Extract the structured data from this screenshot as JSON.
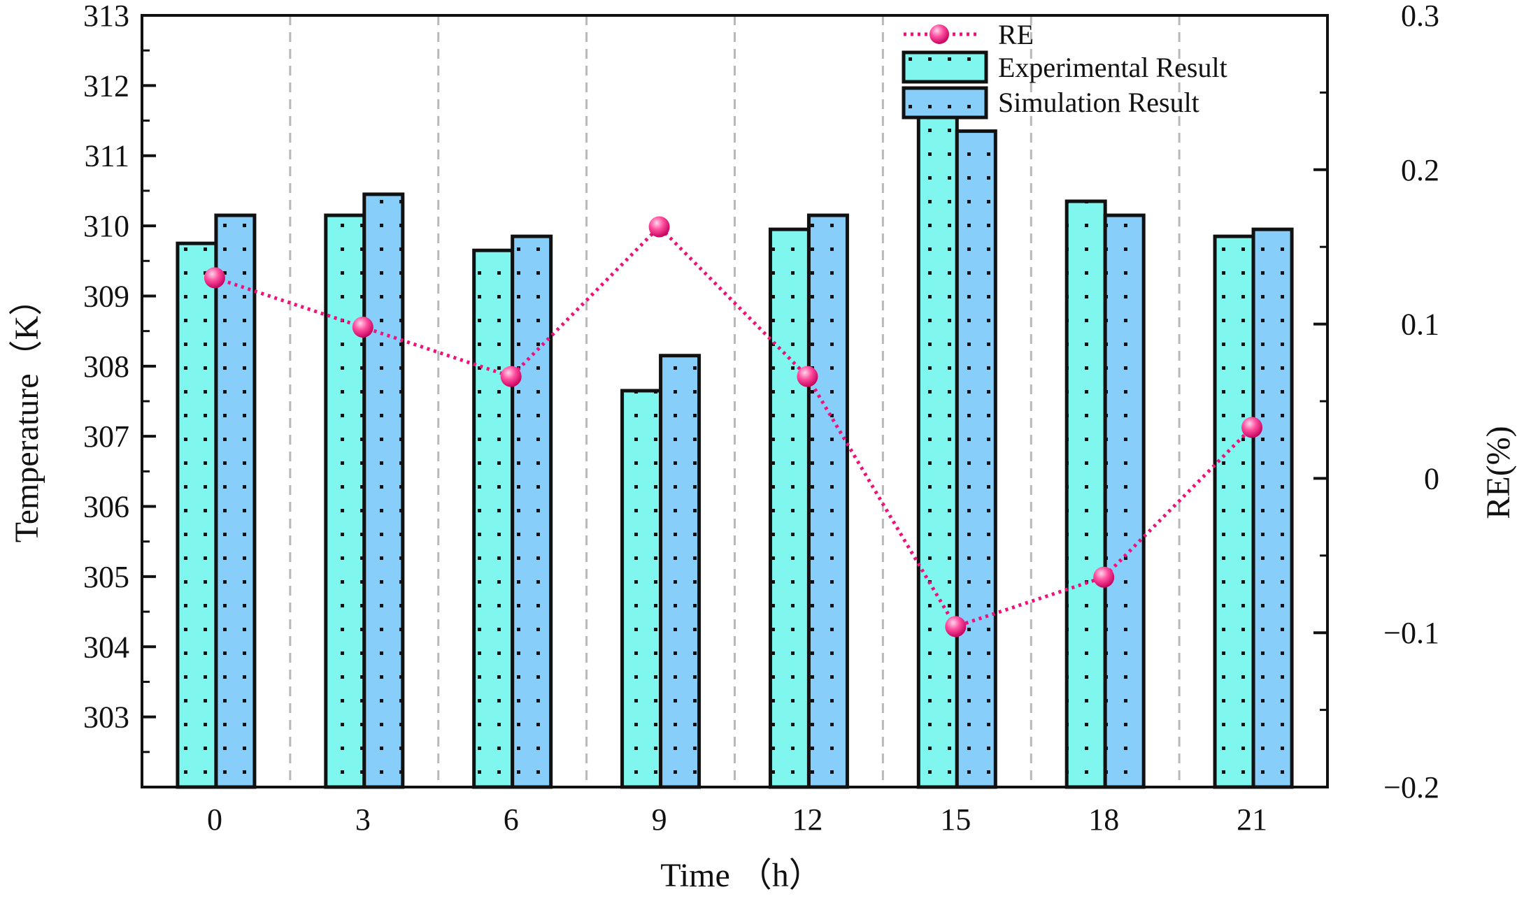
{
  "chart_data": {
    "type": "bar",
    "categories": [
      "0",
      "3",
      "6",
      "9",
      "12",
      "15",
      "18",
      "21"
    ],
    "series": [
      {
        "name": "Experimental Result",
        "axis": "left",
        "color": "#7ff7ef",
        "values": [
          309.75,
          310.15,
          309.65,
          307.65,
          309.95,
          311.65,
          310.35,
          309.85
        ]
      },
      {
        "name": "Simulation Result",
        "axis": "left",
        "color": "#87cefa",
        "values": [
          310.15,
          310.45,
          309.85,
          308.15,
          310.15,
          311.35,
          310.15,
          309.95
        ]
      },
      {
        "name": "RE",
        "axis": "right",
        "type": "line",
        "color": "#ee1177",
        "values": [
          0.13,
          0.098,
          0.066,
          0.163,
          0.066,
          -0.096,
          -0.064,
          0.033
        ]
      }
    ],
    "xlabel": "Time （h）",
    "ylabel_left": "Temperature（K）",
    "ylabel_right": "RE(%)",
    "ylim_left": [
      302,
      313
    ],
    "ylim_right": [
      -0.2,
      0.3
    ],
    "yticks_left": [
      "303",
      "304",
      "305",
      "306",
      "307",
      "308",
      "309",
      "310",
      "311",
      "312",
      "313"
    ],
    "yticks_right": [
      "−0.2",
      "−0.1",
      "0",
      "0.1",
      "0.2",
      "0.3"
    ],
    "grid": "vertical dashed separators between categories",
    "legend_position": "top-right",
    "legend": [
      "RE",
      "Experimental Result",
      "Simulation Result"
    ]
  }
}
